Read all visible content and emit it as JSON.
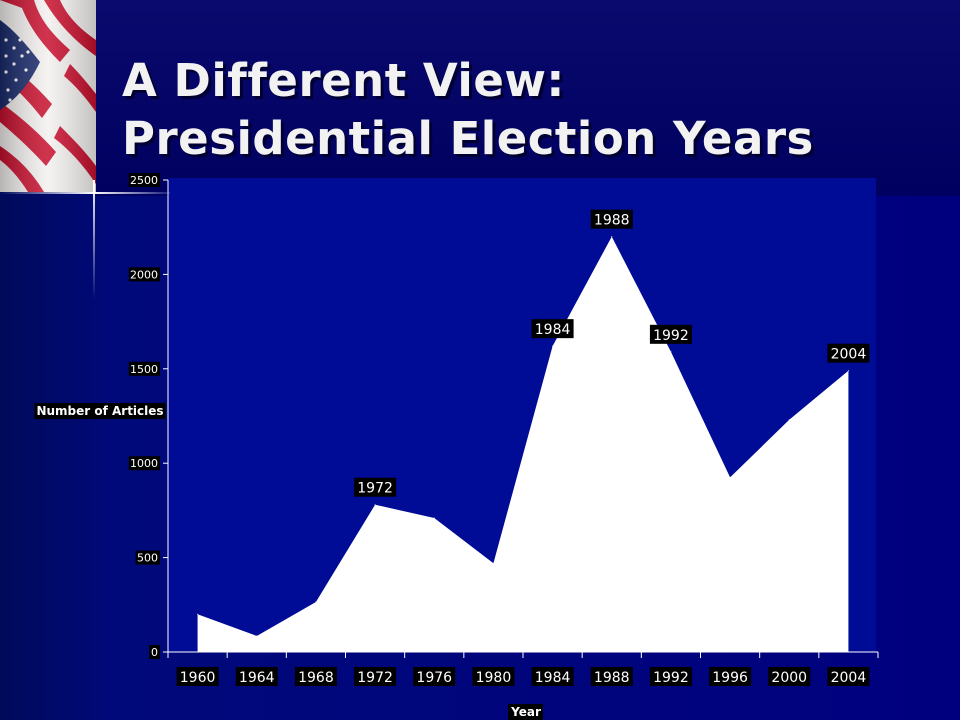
{
  "slide": {
    "title_line1": "A Different View:",
    "title_line2": "Presidential Election Years",
    "accent_color": "#00007f",
    "plot_color": "#000c96",
    "area_color": "#ffffff",
    "decoration": "american-flag-icon"
  },
  "chart_data": {
    "type": "area",
    "title": "",
    "xlabel": "Year",
    "ylabel": "Number of Articles",
    "x": [
      "1960",
      "1964",
      "1968",
      "1972",
      "1976",
      "1980",
      "1984",
      "1988",
      "1992",
      "1996",
      "2000",
      "2004"
    ],
    "series": [
      {
        "values": [
          200,
          85,
          265,
          780,
          710,
          470,
          1620,
          2200,
          1590,
          925,
          1230,
          1490
        ]
      }
    ],
    "ylim": [
      0,
      2500
    ],
    "yticks": [
      "0",
      "500",
      "1000",
      "1500",
      "2000",
      "2500"
    ],
    "annotations": [
      {
        "x": "1972",
        "label": "1972"
      },
      {
        "x": "1984",
        "label": "1984"
      },
      {
        "x": "1988",
        "label": "1988"
      },
      {
        "x": "1992",
        "label": "1992"
      },
      {
        "x": "2004",
        "label": "2004"
      }
    ],
    "grid": false,
    "legend": "none"
  }
}
